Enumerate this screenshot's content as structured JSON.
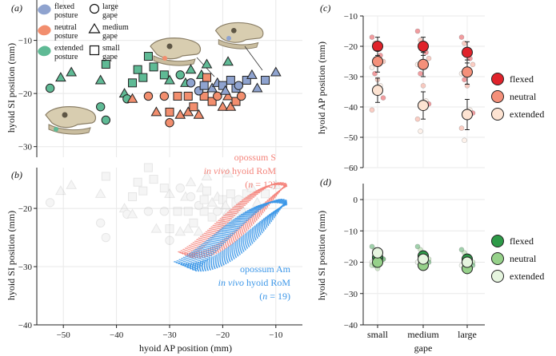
{
  "colors": {
    "flexed": "#8fa3cf",
    "neutral": "#f28e6e",
    "extended": "#5fba95",
    "c_flexed": "#e0232b",
    "c_neutral": "#f4907a",
    "c_extended": "#fde3d2",
    "d_flexed": "#2e9a48",
    "d_neutral": "#96d18a",
    "d_extended": "#e6f5df",
    "opS": "#f4837a",
    "opAm": "#3b96e8"
  },
  "legend_a": {
    "posture": [
      {
        "key": "flexed",
        "label1": "flexed",
        "label2": "posture"
      },
      {
        "key": "neutral",
        "label1": "neutral",
        "label2": "posture"
      },
      {
        "key": "extended",
        "label1": "extended",
        "label2": "posture"
      }
    ],
    "gape": [
      {
        "shape": "circle",
        "label1": "large",
        "label2": "gape"
      },
      {
        "shape": "triangle",
        "label1": "medium",
        "label2": "gape"
      },
      {
        "shape": "square",
        "label1": "small",
        "label2": "gape"
      }
    ]
  },
  "panel_c_legend": [
    "flexed",
    "neutral",
    "extended"
  ],
  "panel_d_legend": [
    "flexed",
    "neutral",
    "extended"
  ],
  "annotations_b": {
    "s_line1": "opossum S",
    "s_line2a": "in vivo",
    "s_line2b": " hyoid RoM",
    "s_line3a": "(",
    "s_line3b": "n",
    "s_line3c": " = 12)",
    "am_line1": "opossum Am",
    "am_line2a": "in vivo",
    "am_line2b": " hyoid RoM",
    "am_line3a": "(",
    "am_line3b": "n",
    "am_line3c": " = 19)"
  },
  "chart_data": [
    {
      "type": "scatter",
      "panel": "(a)",
      "xlabel": "",
      "ylabel": "hyoid SI position (mm)",
      "xlim": [
        -55,
        -5
      ],
      "ylim": [
        -32,
        -3
      ],
      "xticks": [
        -50,
        -40,
        -30,
        -20,
        -10
      ],
      "yticks": [
        -30,
        -20,
        -10
      ],
      "points": [
        {
          "x": -52.5,
          "y": -19,
          "g": "large",
          "p": "extended"
        },
        {
          "x": -50.5,
          "y": -17,
          "g": "medium",
          "p": "extended"
        },
        {
          "x": -48.5,
          "y": -16,
          "g": "medium",
          "p": "extended"
        },
        {
          "x": -43,
          "y": -17.5,
          "g": "medium",
          "p": "extended"
        },
        {
          "x": -42,
          "y": -14.5,
          "g": "small",
          "p": "extended"
        },
        {
          "x": -43,
          "y": -22.5,
          "g": "large",
          "p": "extended"
        },
        {
          "x": -42,
          "y": -25,
          "g": "large",
          "p": "extended"
        },
        {
          "x": -38.5,
          "y": -20,
          "g": "medium",
          "p": "extended"
        },
        {
          "x": -38,
          "y": -21,
          "g": "large",
          "p": "extended"
        },
        {
          "x": -37,
          "y": -18,
          "g": "small",
          "p": "extended"
        },
        {
          "x": -36,
          "y": -15.5,
          "g": "small",
          "p": "extended"
        },
        {
          "x": -35,
          "y": -17,
          "g": "small",
          "p": "extended"
        },
        {
          "x": -34,
          "y": -13,
          "g": "small",
          "p": "extended"
        },
        {
          "x": -33,
          "y": -15,
          "g": "small",
          "p": "extended"
        },
        {
          "x": -31,
          "y": -16.5,
          "g": "small",
          "p": "extended"
        },
        {
          "x": -30,
          "y": -17.5,
          "g": "medium",
          "p": "extended"
        },
        {
          "x": -28,
          "y": -16.5,
          "g": "large",
          "p": "extended"
        },
        {
          "x": -27,
          "y": -18,
          "g": "medium",
          "p": "extended"
        },
        {
          "x": -26,
          "y": -15.5,
          "g": "medium",
          "p": "extended"
        },
        {
          "x": -24,
          "y": -16.5,
          "g": "medium",
          "p": "extended"
        },
        {
          "x": -23,
          "y": -14.5,
          "g": "medium",
          "p": "extended"
        },
        {
          "x": -19,
          "y": -14,
          "g": "medium",
          "p": "extended"
        },
        {
          "x": -37,
          "y": -21,
          "g": "medium",
          "p": "neutral"
        },
        {
          "x": -34,
          "y": -20.5,
          "g": "large",
          "p": "neutral"
        },
        {
          "x": -32.5,
          "y": -23.5,
          "g": "medium",
          "p": "neutral"
        },
        {
          "x": -31,
          "y": -20.5,
          "g": "large",
          "p": "neutral"
        },
        {
          "x": -30,
          "y": -23.5,
          "g": "small",
          "p": "neutral"
        },
        {
          "x": -30,
          "y": -25.5,
          "g": "large",
          "p": "neutral"
        },
        {
          "x": -28.5,
          "y": -20.5,
          "g": "small",
          "p": "neutral"
        },
        {
          "x": -28,
          "y": -24,
          "g": "medium",
          "p": "neutral"
        },
        {
          "x": -26.5,
          "y": -20.5,
          "g": "small",
          "p": "neutral"
        },
        {
          "x": -26.5,
          "y": -23.5,
          "g": "medium",
          "p": "neutral"
        },
        {
          "x": -25.5,
          "y": -22.5,
          "g": "small",
          "p": "neutral"
        },
        {
          "x": -24.5,
          "y": -24,
          "g": "medium",
          "p": "neutral"
        },
        {
          "x": -23.5,
          "y": -20.5,
          "g": "small",
          "p": "neutral"
        },
        {
          "x": -23,
          "y": -17,
          "g": "small",
          "p": "neutral"
        },
        {
          "x": -22,
          "y": -21.5,
          "g": "small",
          "p": "neutral"
        },
        {
          "x": -21,
          "y": -20.5,
          "g": "large",
          "p": "neutral"
        },
        {
          "x": -20,
          "y": -22.5,
          "g": "medium",
          "p": "neutral"
        },
        {
          "x": -19,
          "y": -20.5,
          "g": "medium",
          "p": "neutral"
        },
        {
          "x": -18.5,
          "y": -22.5,
          "g": "medium",
          "p": "neutral"
        },
        {
          "x": -17.5,
          "y": -21.5,
          "g": "small",
          "p": "neutral"
        },
        {
          "x": -16.5,
          "y": -20.5,
          "g": "large",
          "p": "neutral"
        },
        {
          "x": -26,
          "y": -18,
          "g": "large",
          "p": "flexed"
        },
        {
          "x": -24.5,
          "y": -19.5,
          "g": "large",
          "p": "flexed"
        },
        {
          "x": -23.5,
          "y": -18.5,
          "g": "small",
          "p": "flexed"
        },
        {
          "x": -22,
          "y": -19,
          "g": "medium",
          "p": "flexed"
        },
        {
          "x": -21,
          "y": -18,
          "g": "medium",
          "p": "flexed"
        },
        {
          "x": -20,
          "y": -18.5,
          "g": "small",
          "p": "flexed"
        },
        {
          "x": -19.5,
          "y": -19.5,
          "g": "medium",
          "p": "flexed"
        },
        {
          "x": -18.5,
          "y": -17.5,
          "g": "small",
          "p": "flexed"
        },
        {
          "x": -17.5,
          "y": -19,
          "g": "small",
          "p": "flexed"
        },
        {
          "x": -17,
          "y": -18.5,
          "g": "large",
          "p": "flexed"
        },
        {
          "x": -15.5,
          "y": -17.5,
          "g": "small",
          "p": "flexed"
        },
        {
          "x": -14.5,
          "y": -16.5,
          "g": "medium",
          "p": "flexed"
        },
        {
          "x": -13.5,
          "y": -19,
          "g": "medium",
          "p": "flexed"
        },
        {
          "x": -12,
          "y": -17.5,
          "g": "small",
          "p": "flexed"
        },
        {
          "x": -10,
          "y": -16,
          "g": "medium",
          "p": "flexed"
        }
      ]
    },
    {
      "type": "scatter",
      "panel": "(b)",
      "xlabel": "hyoid AP position (mm)",
      "ylabel": "hyoid SI position (mm)",
      "xlim": [
        -55,
        -5
      ],
      "ylim": [
        -40,
        -13
      ],
      "xticks": [
        -50,
        -40,
        -30,
        -20,
        -10
      ],
      "yticks": [
        -40,
        -30,
        -20
      ],
      "series": [
        {
          "name": "opossum S in vivo hyoid RoM",
          "n": 12,
          "loop_start": [
            -27,
            -28
          ],
          "loop_end": [
            -8,
            -16
          ],
          "width": 3.5
        },
        {
          "name": "opossum Am in vivo hyoid RoM",
          "n": 19,
          "loop_start": [
            -27,
            -30
          ],
          "loop_end": [
            -8,
            -19
          ],
          "width": 3.5
        }
      ]
    },
    {
      "type": "scatter",
      "panel": "(c)",
      "xlabel": "",
      "ylabel": "hyoid AP position (mm)",
      "categories": [
        "small",
        "medium",
        "large"
      ],
      "ylim": [
        -60,
        -10
      ],
      "yticks": [
        -60,
        -50,
        -40,
        -30,
        -20,
        -10
      ],
      "series": [
        {
          "name": "flexed",
          "means": [
            -20,
            -20,
            -22
          ],
          "err": [
            3,
            3,
            3.5
          ]
        },
        {
          "name": "neutral",
          "means": [
            -25,
            -26,
            -28.5
          ],
          "err": [
            3.5,
            4,
            4
          ]
        },
        {
          "name": "extended",
          "means": [
            -34.5,
            -39.5,
            -42.5
          ],
          "err": [
            4,
            4.5,
            5
          ]
        }
      ],
      "raw": {
        "small": [
          -17,
          -19,
          -21,
          -23,
          -25,
          -27,
          -29,
          -31,
          -33,
          -37,
          -41
        ],
        "medium": [
          -15,
          -18,
          -20,
          -22,
          -24,
          -26,
          -29,
          -33,
          -38,
          -39,
          -44,
          -48
        ],
        "large": [
          -17,
          -19,
          -22,
          -24,
          -26,
          -29,
          -31,
          -33,
          -41,
          -42,
          -47,
          -51
        ]
      }
    },
    {
      "type": "scatter",
      "panel": "(d)",
      "xlabel": "gape",
      "ylabel": "hyoid SI position (mm)",
      "categories": [
        "small",
        "medium",
        "large"
      ],
      "ylim": [
        -40,
        0
      ],
      "yticks": [
        -40,
        -30,
        -20,
        -10,
        0
      ],
      "series": [
        {
          "name": "flexed",
          "means": [
            -18.5,
            -18,
            -19
          ],
          "err": [
            1.5,
            1.5,
            1.5
          ]
        },
        {
          "name": "neutral",
          "means": [
            -20,
            -21,
            -22
          ],
          "err": [
            1.5,
            1.5,
            1.5
          ]
        },
        {
          "name": "extended",
          "means": [
            -17,
            -19,
            -20
          ],
          "err": [
            1.5,
            1.5,
            1.5
          ]
        }
      ],
      "raw": {
        "small": [
          -15,
          -16,
          -17,
          -18,
          -19,
          -20,
          -21,
          -22,
          -17,
          -19,
          -21
        ],
        "medium": [
          -15,
          -16,
          -17,
          -18,
          -19,
          -20,
          -21,
          -22,
          -18,
          -20
        ],
        "large": [
          -16,
          -17,
          -18,
          -19,
          -20,
          -21,
          -22,
          -23,
          -19,
          -21
        ]
      }
    }
  ]
}
